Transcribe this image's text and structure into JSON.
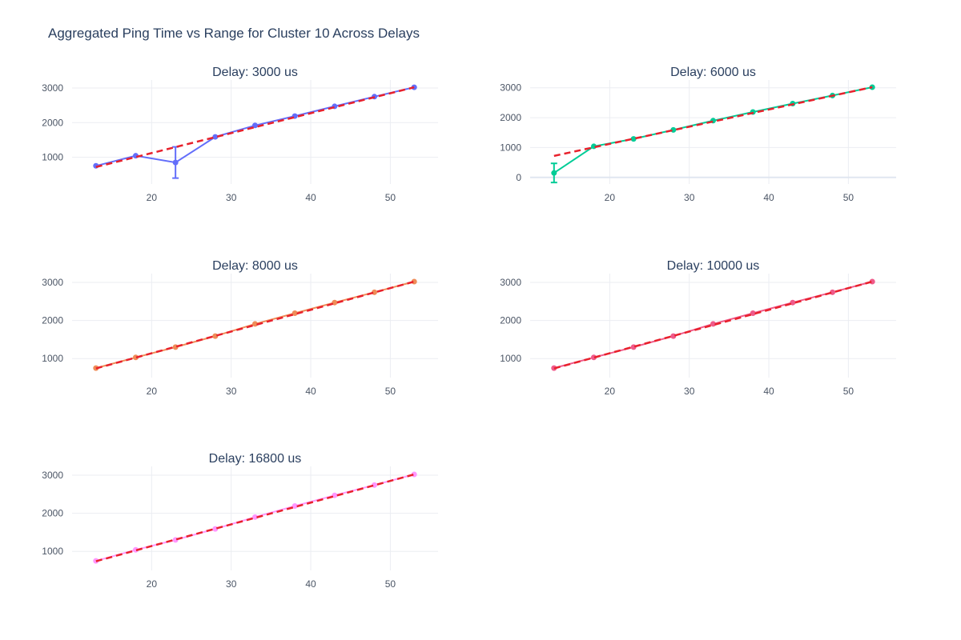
{
  "title": "Aggregated Ping Time vs Range for Cluster 10 Across Delays",
  "colors": {
    "fit_line": "#e8212c",
    "grid": "#ebedf2",
    "zero_line": "#e0e6f0",
    "axis_text": "#4b5565",
    "subtitle_text": "#2a3f5f"
  },
  "chart_data": [
    {
      "type": "line",
      "title": "Delay: 3000 us",
      "color": "#636efa",
      "x": [
        13,
        18,
        23,
        28,
        33,
        38,
        43,
        48,
        53
      ],
      "y": [
        755,
        1045,
        850,
        1590,
        1920,
        2190,
        2470,
        2750,
        3020
      ],
      "error_y": [
        0,
        0,
        450,
        0,
        0,
        0,
        0,
        0,
        0
      ],
      "fit": {
        "x": [
          13,
          53
        ],
        "y": [
          720,
          3020
        ]
      },
      "xlim": [
        10,
        56
      ],
      "ylim": [
        230,
        3230
      ],
      "xticks": [
        20,
        30,
        40,
        50
      ],
      "yticks": [
        1000,
        2000,
        3000
      ]
    },
    {
      "type": "line",
      "title": "Delay: 6000 us",
      "color": "#00cc96",
      "x": [
        13,
        18,
        23,
        28,
        33,
        38,
        43,
        48,
        53
      ],
      "y": [
        150,
        1040,
        1290,
        1590,
        1900,
        2190,
        2470,
        2740,
        3020
      ],
      "error_y": [
        320,
        0,
        0,
        0,
        0,
        0,
        0,
        0,
        0
      ],
      "fit": {
        "x": [
          13,
          53
        ],
        "y": [
          720,
          3020
        ]
      },
      "xlim": [
        10,
        56
      ],
      "ylim": [
        -220,
        3260
      ],
      "xticks": [
        20,
        30,
        40,
        50
      ],
      "yticks": [
        0,
        1000,
        2000,
        3000
      ]
    },
    {
      "type": "line",
      "title": "Delay: 8000 us",
      "color": "#ef8c58",
      "x": [
        13,
        18,
        23,
        28,
        33,
        38,
        43,
        48,
        53
      ],
      "y": [
        750,
        1030,
        1300,
        1590,
        1910,
        2190,
        2470,
        2740,
        3020
      ],
      "error_y": [
        0,
        0,
        0,
        0,
        0,
        0,
        0,
        0,
        0
      ],
      "fit": {
        "x": [
          13,
          53
        ],
        "y": [
          740,
          3020
        ]
      },
      "xlim": [
        10,
        56
      ],
      "ylim": [
        500,
        3230
      ],
      "xticks": [
        20,
        30,
        40,
        50
      ],
      "yticks": [
        1000,
        2000,
        3000
      ]
    },
    {
      "type": "line",
      "title": "Delay: 10000 us",
      "color": "#ef5a8a",
      "x": [
        13,
        18,
        23,
        28,
        33,
        38,
        43,
        48,
        53
      ],
      "y": [
        750,
        1030,
        1300,
        1590,
        1910,
        2190,
        2470,
        2740,
        3020
      ],
      "error_y": [
        0,
        0,
        0,
        0,
        0,
        0,
        0,
        0,
        0
      ],
      "fit": {
        "x": [
          13,
          53
        ],
        "y": [
          740,
          3020
        ]
      },
      "xlim": [
        10,
        56
      ],
      "ylim": [
        500,
        3230
      ],
      "xticks": [
        20,
        30,
        40,
        50
      ],
      "yticks": [
        1000,
        2000,
        3000
      ]
    },
    {
      "type": "line",
      "title": "Delay: 16800 us",
      "color": "#ff97ff",
      "x": [
        13,
        18,
        23,
        28,
        33,
        38,
        43,
        48,
        53
      ],
      "y": [
        750,
        1040,
        1300,
        1590,
        1900,
        2190,
        2470,
        2740,
        3020
      ],
      "error_y": [
        0,
        0,
        0,
        0,
        0,
        0,
        0,
        0,
        0
      ],
      "fit": {
        "x": [
          13,
          53
        ],
        "y": [
          740,
          3020
        ]
      },
      "xlim": [
        10,
        56
      ],
      "ylim": [
        500,
        3230
      ],
      "xticks": [
        20,
        30,
        40,
        50
      ],
      "yticks": [
        1000,
        2000,
        3000
      ]
    }
  ]
}
